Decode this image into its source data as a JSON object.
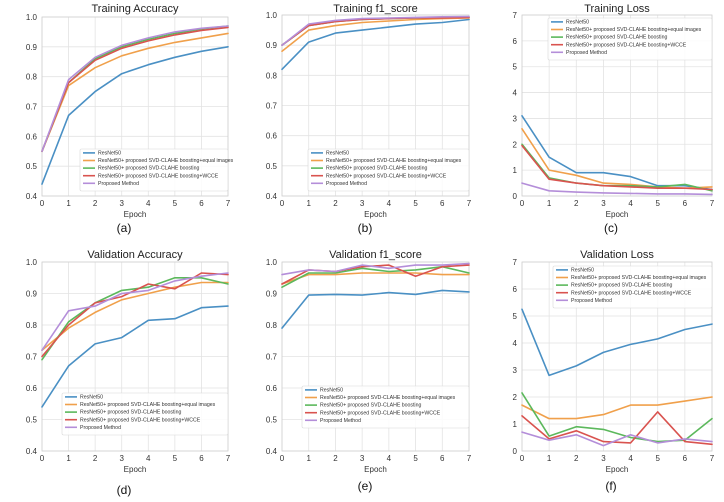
{
  "chart_data": [
    {
      "type": "line",
      "panel": "(a)",
      "title": "Training Accuracy",
      "xlabel": "Epoch",
      "ylabel": "",
      "x": [
        0,
        1,
        2,
        3,
        4,
        5,
        6,
        7
      ],
      "xlim": [
        0,
        7
      ],
      "ylim": [
        0.4,
        1.0
      ],
      "yticks": [
        0.4,
        0.5,
        0.6,
        0.7,
        0.8,
        0.9,
        1.0
      ],
      "ytick_labels": [
        "0.4",
        "0.5",
        "0.6",
        "0.7",
        "0.8",
        "0.9",
        "1.0"
      ],
      "legend_loc": "lower-right",
      "series": [
        {
          "name": "ResNet50",
          "color": "#4a90c4",
          "values": [
            0.44,
            0.67,
            0.75,
            0.81,
            0.84,
            0.865,
            0.885,
            0.9
          ]
        },
        {
          "name": "ResNet50+ proposed SVD-CLAHE boosting+equal images",
          "color": "#f0a04b",
          "values": [
            0.55,
            0.77,
            0.83,
            0.87,
            0.895,
            0.915,
            0.93,
            0.945
          ]
        },
        {
          "name": "ResNet50+ proposed SVD-CLAHE boosting",
          "color": "#5cb85c",
          "values": [
            0.55,
            0.78,
            0.86,
            0.9,
            0.925,
            0.945,
            0.96,
            0.97
          ]
        },
        {
          "name": "ResNet50+ proposed SVD-CLAHE boosting+WCCE",
          "color": "#d9534f",
          "values": [
            0.55,
            0.78,
            0.855,
            0.895,
            0.92,
            0.94,
            0.955,
            0.965
          ]
        },
        {
          "name": "Proposed Method",
          "color": "#b48ed9",
          "values": [
            0.55,
            0.79,
            0.865,
            0.905,
            0.93,
            0.95,
            0.962,
            0.97
          ]
        }
      ]
    },
    {
      "type": "line",
      "panel": "(b)",
      "title": "Training f1_score",
      "xlabel": "Epoch",
      "ylabel": "",
      "x": [
        0,
        1,
        2,
        3,
        4,
        5,
        6,
        7
      ],
      "xlim": [
        0,
        7
      ],
      "ylim": [
        0.4,
        1.0
      ],
      "yticks": [
        0.4,
        0.5,
        0.6,
        0.7,
        0.8,
        0.9,
        1.0
      ],
      "ytick_labels": [
        "0.4",
        "0.5",
        "0.6",
        "0.7",
        "0.8",
        "0.9",
        "1.0"
      ],
      "legend_loc": "lower-right",
      "series": [
        {
          "name": "ResNet50",
          "color": "#4a90c4",
          "values": [
            0.82,
            0.91,
            0.94,
            0.95,
            0.96,
            0.97,
            0.975,
            0.985
          ]
        },
        {
          "name": "ResNet50+ proposed SVD-CLAHE boosting+equal images",
          "color": "#f0a04b",
          "values": [
            0.88,
            0.95,
            0.965,
            0.975,
            0.98,
            0.985,
            0.988,
            0.99
          ]
        },
        {
          "name": "ResNet50+ proposed SVD-CLAHE boosting",
          "color": "#5cb85c",
          "values": [
            0.9,
            0.965,
            0.978,
            0.985,
            0.988,
            0.99,
            0.992,
            0.993
          ]
        },
        {
          "name": "ResNet50+ proposed SVD-CLAHE boosting+WCCE",
          "color": "#d9534f",
          "values": [
            0.9,
            0.965,
            0.978,
            0.985,
            0.988,
            0.99,
            0.99,
            0.992
          ]
        },
        {
          "name": "Proposed Method",
          "color": "#b48ed9",
          "values": [
            0.9,
            0.97,
            0.982,
            0.988,
            0.99,
            0.992,
            0.994,
            0.995
          ]
        }
      ]
    },
    {
      "type": "line",
      "panel": "(c)",
      "title": "Training Loss",
      "xlabel": "Epoch",
      "ylabel": "",
      "x": [
        0,
        1,
        2,
        3,
        4,
        5,
        6,
        7
      ],
      "xlim": [
        0,
        7
      ],
      "ylim": [
        0,
        7
      ],
      "yticks": [
        0,
        1,
        2,
        3,
        4,
        5,
        6,
        7
      ],
      "ytick_labels": [
        "0",
        "1",
        "2",
        "3",
        "4",
        "5",
        "6",
        "7"
      ],
      "legend_loc": "top-right",
      "series": [
        {
          "name": "ResNet50",
          "color": "#4a90c4",
          "values": [
            3.1,
            1.5,
            0.9,
            0.9,
            0.75,
            0.4,
            0.4,
            0.25
          ]
        },
        {
          "name": "ResNet50+ proposed SVD-CLAHE boosting+equal images",
          "color": "#f0a04b",
          "values": [
            2.6,
            1.0,
            0.8,
            0.5,
            0.45,
            0.35,
            0.3,
            0.35
          ]
        },
        {
          "name": "ResNet50+ proposed SVD-CLAHE boosting",
          "color": "#5cb85c",
          "values": [
            2.0,
            0.7,
            0.5,
            0.4,
            0.4,
            0.35,
            0.45,
            0.2
          ]
        },
        {
          "name": "ResNet50+ proposed SVD-CLAHE boosting+WCCE",
          "color": "#d9534f",
          "values": [
            1.95,
            0.65,
            0.5,
            0.4,
            0.35,
            0.3,
            0.3,
            0.25
          ]
        },
        {
          "name": "Proposed Method",
          "color": "#b48ed9",
          "values": [
            0.5,
            0.2,
            0.15,
            0.12,
            0.1,
            0.08,
            0.08,
            0.06
          ]
        }
      ]
    },
    {
      "type": "line",
      "panel": "(d)",
      "title": "Validation Accuracy",
      "xlabel": "Epoch",
      "ylabel": "",
      "x": [
        0,
        1,
        2,
        3,
        4,
        5,
        6,
        7
      ],
      "xlim": [
        0,
        7
      ],
      "ylim": [
        0.4,
        1.0
      ],
      "yticks": [
        0.4,
        0.5,
        0.6,
        0.7,
        0.8,
        0.9,
        1.0
      ],
      "ytick_labels": [
        "0.4",
        "0.5",
        "0.6",
        "0.7",
        "0.8",
        "0.9",
        "1.0"
      ],
      "legend_loc": "lower-right",
      "series": [
        {
          "name": "ResNet50",
          "color": "#4a90c4",
          "values": [
            0.54,
            0.67,
            0.74,
            0.76,
            0.815,
            0.82,
            0.855,
            0.86
          ]
        },
        {
          "name": "ResNet50+ proposed SVD-CLAHE boosting+equal images",
          "color": "#f0a04b",
          "values": [
            0.72,
            0.79,
            0.84,
            0.88,
            0.9,
            0.92,
            0.935,
            0.935
          ]
        },
        {
          "name": "ResNet50+ proposed SVD-CLAHE boosting",
          "color": "#5cb85c",
          "values": [
            0.69,
            0.81,
            0.87,
            0.91,
            0.92,
            0.95,
            0.95,
            0.93
          ]
        },
        {
          "name": "ResNet50+ proposed SVD-CLAHE boosting+WCCE",
          "color": "#d9534f",
          "values": [
            0.7,
            0.8,
            0.87,
            0.89,
            0.93,
            0.915,
            0.965,
            0.96
          ]
        },
        {
          "name": "Proposed Method",
          "color": "#b48ed9",
          "values": [
            0.72,
            0.845,
            0.86,
            0.9,
            0.91,
            0.94,
            0.955,
            0.965
          ]
        }
      ]
    },
    {
      "type": "line",
      "panel": "(e)",
      "title": "Validation f1_score",
      "xlabel": "Epoch",
      "ylabel": "",
      "x": [
        0,
        1,
        2,
        3,
        4,
        5,
        6,
        7
      ],
      "xlim": [
        0,
        7
      ],
      "ylim": [
        0.4,
        1.0
      ],
      "yticks": [
        0.4,
        0.5,
        0.6,
        0.7,
        0.8,
        0.9,
        1.0
      ],
      "ytick_labels": [
        "0.4",
        "0.5",
        "0.6",
        "0.7",
        "0.8",
        "0.9",
        "1.0"
      ],
      "legend_loc": "lower-right",
      "series": [
        {
          "name": "ResNet50",
          "color": "#4a90c4",
          "values": [
            0.79,
            0.895,
            0.897,
            0.895,
            0.903,
            0.897,
            0.91,
            0.905
          ]
        },
        {
          "name": "ResNet50+ proposed SVD-CLAHE boosting+equal images",
          "color": "#f0a04b",
          "values": [
            0.93,
            0.96,
            0.96,
            0.965,
            0.965,
            0.965,
            0.96,
            0.96
          ]
        },
        {
          "name": "ResNet50+ proposed SVD-CLAHE boosting",
          "color": "#5cb85c",
          "values": [
            0.92,
            0.965,
            0.965,
            0.98,
            0.97,
            0.975,
            0.985,
            0.965
          ]
        },
        {
          "name": "ResNet50+ proposed SVD-CLAHE boosting+WCCE",
          "color": "#d9534f",
          "values": [
            0.93,
            0.975,
            0.97,
            0.985,
            0.99,
            0.955,
            0.985,
            0.99
          ]
        },
        {
          "name": "Proposed Method",
          "color": "#b48ed9",
          "values": [
            0.96,
            0.975,
            0.97,
            0.99,
            0.98,
            0.99,
            0.99,
            0.995
          ]
        }
      ]
    },
    {
      "type": "line",
      "panel": "(f)",
      "title": "Validation Loss",
      "xlabel": "Epoch",
      "ylabel": "",
      "x": [
        0,
        1,
        2,
        3,
        4,
        5,
        6,
        7
      ],
      "xlim": [
        0,
        7
      ],
      "ylim": [
        0,
        7
      ],
      "yticks": [
        0,
        1,
        2,
        3,
        4,
        5,
        6,
        7
      ],
      "ytick_labels": [
        "0",
        "1",
        "2",
        "3",
        "4",
        "5",
        "6",
        "7"
      ],
      "legend_loc": "top-right",
      "series": [
        {
          "name": "ResNet50",
          "color": "#4a90c4",
          "values": [
            5.25,
            2.8,
            3.15,
            3.65,
            3.95,
            4.15,
            4.5,
            4.7
          ]
        },
        {
          "name": "ResNet50+ proposed SVD-CLAHE boosting+equal images",
          "color": "#f0a04b",
          "values": [
            1.7,
            1.2,
            1.2,
            1.35,
            1.7,
            1.7,
            1.85,
            2.0
          ]
        },
        {
          "name": "ResNet50+ proposed SVD-CLAHE boosting",
          "color": "#5cb85c",
          "values": [
            2.15,
            0.55,
            0.9,
            0.8,
            0.5,
            0.35,
            0.4,
            1.2
          ]
        },
        {
          "name": "ResNet50+ proposed SVD-CLAHE boosting+WCCE",
          "color": "#d9534f",
          "values": [
            1.3,
            0.45,
            0.75,
            0.35,
            0.3,
            1.45,
            0.35,
            0.25
          ]
        },
        {
          "name": "Proposed Method",
          "color": "#b48ed9",
          "values": [
            0.7,
            0.4,
            0.6,
            0.2,
            0.6,
            0.3,
            0.45,
            0.35
          ]
        }
      ]
    }
  ]
}
